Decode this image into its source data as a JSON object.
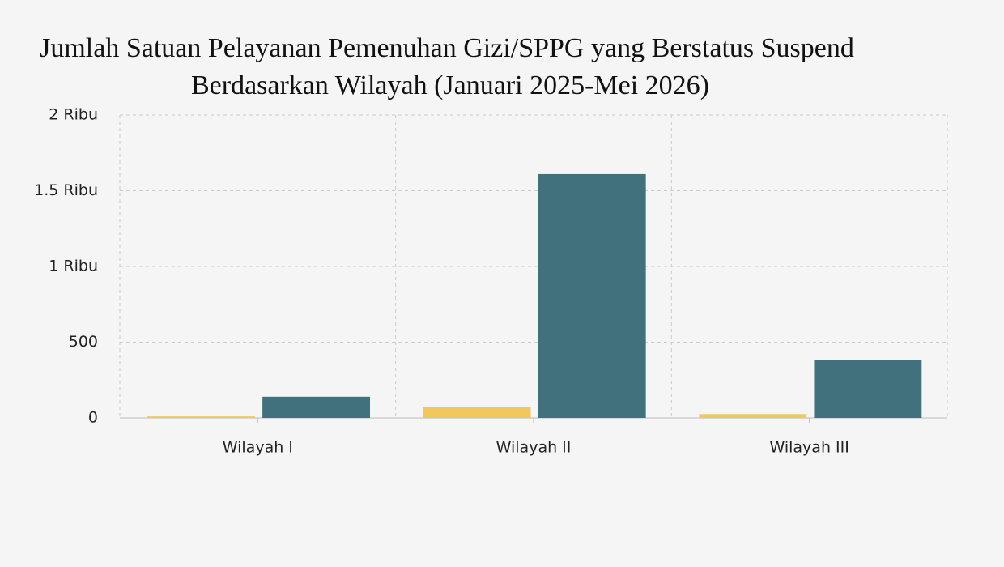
{
  "chart_data": {
    "type": "bar",
    "title": [
      "Jumlah Satuan Pelayanan Pemenuhan Gizi/SPPG yang Berstatus Suspend",
      "Berdasarkan Wilayah (Januari 2025-Mei 2026)"
    ],
    "categories": [
      "Wilayah I",
      "Wilayah II",
      "Wilayah III"
    ],
    "series": [
      {
        "color": "#f2c75c",
        "values": [
          10,
          70,
          25
        ]
      },
      {
        "color": "#41717d",
        "values": [
          140,
          1610,
          380
        ]
      }
    ],
    "ylim": [
      0,
      2000
    ],
    "yticks": [
      0,
      500,
      {
        "value": 1000,
        "label": "1 Ribu"
      },
      {
        "value": 1500,
        "label": "1.5 Ribu"
      },
      {
        "value": 2000,
        "label": "2 Ribu"
      }
    ],
    "grid": true
  }
}
